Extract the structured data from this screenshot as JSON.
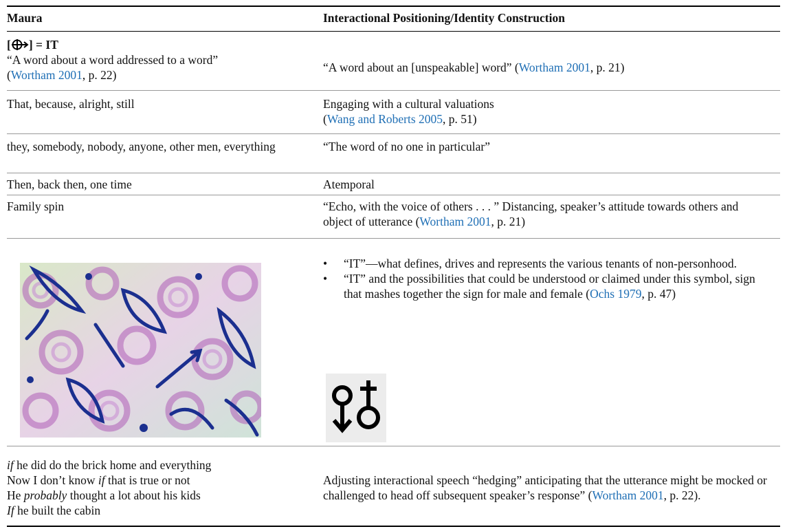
{
  "table": {
    "header": [
      "Maura",
      "Interactional Positioning/Identity Construction"
    ],
    "rows": [
      {
        "maura": [
          "[",
          "] = IT",
          "“A word about a word addressed to a word”",
          "(",
          "Wortham 2001",
          ", p. 22)"
        ],
        "positioning": [
          "“A word about an [unspeakable] word” (",
          "Wortham 2001",
          ", p. 21)"
        ]
      },
      {
        "maura": [
          "That, because, alright, still"
        ],
        "positioning": [
          "Engaging with a cultural valuations",
          "(",
          "Wang and Roberts 2005",
          ", p. 51)"
        ]
      },
      {
        "maura": [
          "they, somebody, nobody, anyone, other men, everything"
        ],
        "positioning": [
          "“The word of no one in particular”"
        ]
      },
      {
        "maura": [
          "Then, back then, one time"
        ],
        "positioning": [
          "Atemporal"
        ]
      },
      {
        "maura": [
          "Family spin"
        ],
        "positioning": [
          "“Echo, with the voice of others . . . ” Distancing, speaker’s attitude towards others and object of utterance (",
          "Wortham 2001",
          ", p. 21)"
        ]
      },
      {
        "positioning": [
          "“IT”—what defines, drives and represents the various tenants of non-personhood.",
          "“IT” and the possibilities that could be understood or claimed under this symbol, sign that mashes together the sign for male and female (",
          "Ochs 1979",
          ", p. 47)"
        ]
      },
      {
        "maura": [
          "if",
          " he did do the brick home and everything",
          "Now I don’t know ",
          "if",
          " that is true or not",
          "He ",
          "probably",
          " thought a lot about his kids",
          "If",
          " he built the cabin"
        ],
        "positioning": [
          "Adjusting interactional speech “hedging” anticipating that the utterance might be mocked or challenged to head off subsequent speaker’s response” (",
          "Wortham 2001",
          ", p. 22)."
        ]
      }
    ]
  }
}
